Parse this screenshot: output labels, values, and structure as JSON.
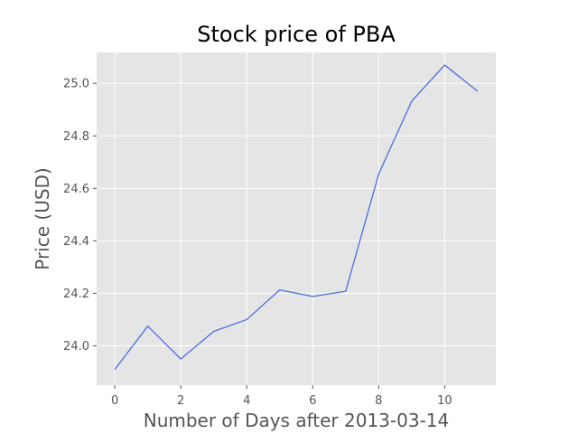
{
  "chart_data": {
    "type": "line",
    "title": "Stock price of PBA",
    "xlabel": "Number of Days after 2013-03-14",
    "ylabel": "Price (USD)",
    "x": [
      0,
      1,
      2,
      3,
      4,
      5,
      6,
      7,
      8,
      9,
      10,
      11
    ],
    "series": [
      {
        "values": [
          23.91,
          24.075,
          23.95,
          24.055,
          24.1,
          24.213,
          24.188,
          24.208,
          24.655,
          24.932,
          25.07,
          24.97
        ],
        "color": "#4c6fdc"
      }
    ],
    "xlim": [
      -0.55,
      11.55
    ],
    "ylim": [
      23.85,
      25.118
    ],
    "xticks": [
      0,
      2,
      4,
      6,
      8,
      10
    ],
    "yticks": [
      24.0,
      24.2,
      24.4,
      24.6,
      24.8,
      25.0
    ],
    "xtick_labels": [
      "0",
      "2",
      "4",
      "6",
      "8",
      "10"
    ],
    "ytick_labels": [
      "24.0",
      "24.2",
      "24.4",
      "24.6",
      "24.8",
      "25.0"
    ],
    "grid": true,
    "style": "ggplot",
    "background_color": "#e5e5e5",
    "grid_color": "#ffffff"
  }
}
